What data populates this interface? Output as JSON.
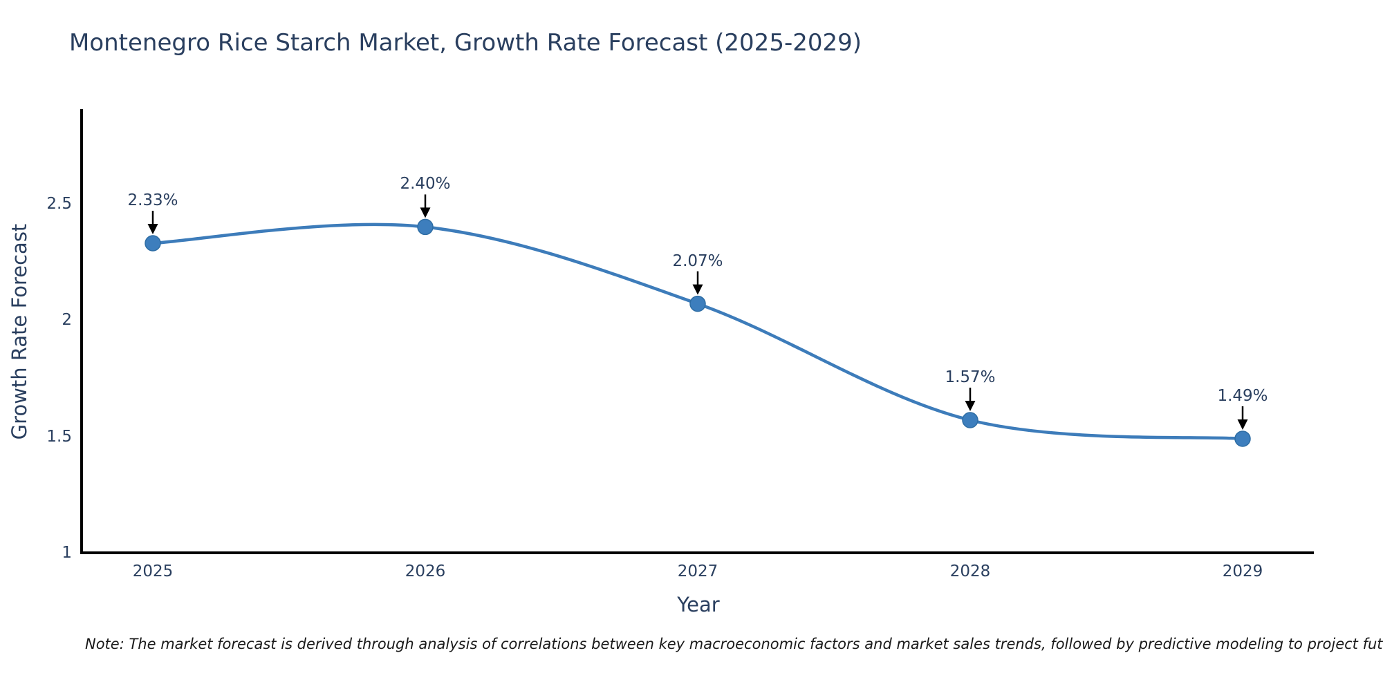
{
  "chart_data": {
    "type": "line",
    "title": "Montenegro Rice Starch Market, Growth Rate Forecast (2025-2029)",
    "xlabel": "Year",
    "ylabel": "Growth Rate Forecast",
    "x": [
      2025,
      2026,
      2027,
      2028,
      2029
    ],
    "series": [
      {
        "name": "Growth Rate Forecast",
        "values": [
          2.33,
          2.4,
          2.07,
          1.57,
          1.49
        ]
      }
    ],
    "point_labels": [
      "2.33%",
      "2.40%",
      "2.07%",
      "1.57%",
      "1.49%"
    ],
    "xtick_labels": [
      "2025",
      "2026",
      "2027",
      "2028",
      "2029"
    ],
    "yticks": [
      1,
      1.5,
      2,
      2.5
    ],
    "ytick_labels": [
      "1",
      "1.5",
      "2",
      "2.5"
    ],
    "ylim": [
      1,
      2.9
    ],
    "grid": false,
    "legend_position": "none",
    "line_shape": "spline",
    "annotations_arrows": true,
    "colors": {
      "line": "#3d7cba",
      "marker": "#3d7ebd",
      "marker_edge": "#2e6da4",
      "axis_line": "#000000",
      "text": "#2a3f5f",
      "arrow": "#000000",
      "background": "#ffffff"
    }
  },
  "note": {
    "text": "Note: The market forecast is derived through analysis of correlations between key macroeconomic factors and market sales trends, followed by predictive modeling to project future sales"
  }
}
